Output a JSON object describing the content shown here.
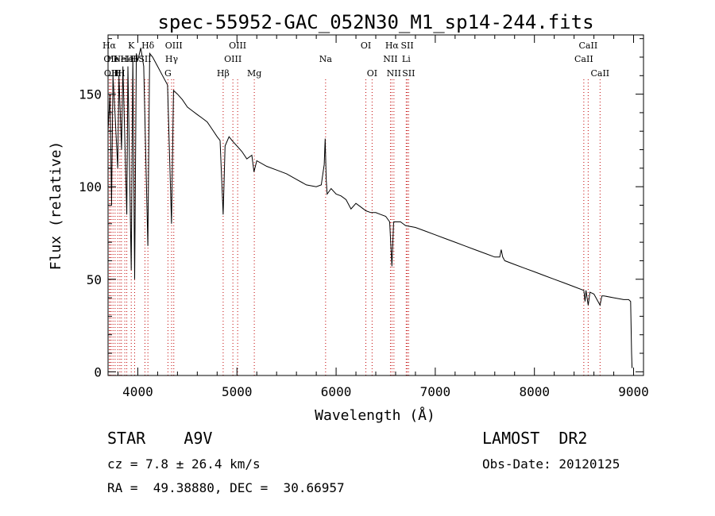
{
  "chart_data": {
    "type": "line",
    "title": "spec-55952-GAC_052N30_M1_sp14-244.fits",
    "xlabel": "Wavelength (Å)",
    "ylabel": "Flux (relative)",
    "xlim": [
      3700,
      9100
    ],
    "ylim": [
      -2,
      182
    ],
    "xticks": [
      4000,
      5000,
      6000,
      7000,
      8000,
      9000
    ],
    "yticks": [
      0,
      50,
      100,
      150
    ],
    "grid": false,
    "series": [
      {
        "points": [
          [
            3700,
            130
          ],
          [
            3720,
            150
          ],
          [
            3735,
            90
          ],
          [
            3750,
            160
          ],
          [
            3770,
            140
          ],
          [
            3798,
            110
          ],
          [
            3810,
            160
          ],
          [
            3836,
            120
          ],
          [
            3850,
            165
          ],
          [
            3889,
            85
          ],
          [
            3900,
            165
          ],
          [
            3934,
            55
          ],
          [
            3950,
            170
          ],
          [
            3968,
            50
          ],
          [
            3985,
            172
          ],
          [
            4000,
            168
          ],
          [
            4030,
            175
          ],
          [
            4060,
            165
          ],
          [
            4101,
            68
          ],
          [
            4120,
            172
          ],
          [
            4150,
            170
          ],
          [
            4200,
            165
          ],
          [
            4250,
            160
          ],
          [
            4300,
            155
          ],
          [
            4340,
            80
          ],
          [
            4360,
            152
          ],
          [
            4400,
            150
          ],
          [
            4450,
            147
          ],
          [
            4500,
            143
          ],
          [
            4550,
            141
          ],
          [
            4600,
            139
          ],
          [
            4650,
            137
          ],
          [
            4700,
            135
          ],
          [
            4750,
            131
          ],
          [
            4800,
            127
          ],
          [
            4830,
            125
          ],
          [
            4861,
            85
          ],
          [
            4880,
            122
          ],
          [
            4920,
            127
          ],
          [
            4950,
            125
          ],
          [
            5000,
            122
          ],
          [
            5050,
            119
          ],
          [
            5100,
            115
          ],
          [
            5150,
            117
          ],
          [
            5172,
            108
          ],
          [
            5200,
            114
          ],
          [
            5300,
            111
          ],
          [
            5400,
            109
          ],
          [
            5500,
            107
          ],
          [
            5600,
            104
          ],
          [
            5700,
            101
          ],
          [
            5800,
            100
          ],
          [
            5850,
            101
          ],
          [
            5880,
            112
          ],
          [
            5890,
            126
          ],
          [
            5900,
            104
          ],
          [
            5910,
            96
          ],
          [
            5950,
            99
          ],
          [
            6000,
            96
          ],
          [
            6050,
            95
          ],
          [
            6100,
            93
          ],
          [
            6150,
            88
          ],
          [
            6200,
            91
          ],
          [
            6250,
            89
          ],
          [
            6300,
            87
          ],
          [
            6350,
            86
          ],
          [
            6400,
            86
          ],
          [
            6450,
            85
          ],
          [
            6500,
            84
          ],
          [
            6540,
            81
          ],
          [
            6563,
            57
          ],
          [
            6580,
            81
          ],
          [
            6600,
            81
          ],
          [
            6650,
            81
          ],
          [
            6700,
            79
          ],
          [
            6800,
            78
          ],
          [
            6900,
            76
          ],
          [
            7000,
            74
          ],
          [
            7100,
            72
          ],
          [
            7200,
            70
          ],
          [
            7300,
            68
          ],
          [
            7400,
            66
          ],
          [
            7500,
            64
          ],
          [
            7600,
            62
          ],
          [
            7650,
            62
          ],
          [
            7665,
            66
          ],
          [
            7680,
            62
          ],
          [
            7700,
            60
          ],
          [
            7800,
            58
          ],
          [
            7900,
            56
          ],
          [
            8000,
            54
          ],
          [
            8100,
            52
          ],
          [
            8200,
            50
          ],
          [
            8300,
            48
          ],
          [
            8400,
            46
          ],
          [
            8498,
            44
          ],
          [
            8510,
            38
          ],
          [
            8520,
            44
          ],
          [
            8542,
            36
          ],
          [
            8560,
            43
          ],
          [
            8600,
            42
          ],
          [
            8662,
            36
          ],
          [
            8680,
            41
          ],
          [
            8700,
            41
          ],
          [
            8800,
            40
          ],
          [
            8900,
            39
          ],
          [
            8950,
            39
          ],
          [
            8970,
            38
          ],
          [
            8980,
            10
          ],
          [
            8985,
            2
          ]
        ]
      }
    ],
    "lines": [
      {
        "x": 3712,
        "label": "Hα",
        "row": 1
      },
      {
        "x": 3726,
        "label": "OII",
        "row": 2
      },
      {
        "x": 3730,
        "label": "OII",
        "row": 3
      },
      {
        "x": 3750,
        "label": "He",
        "row": 2
      },
      {
        "x": 3771,
        "label": "H",
        "row": 3
      },
      {
        "x": 3798,
        "label": "H",
        "row": 3
      },
      {
        "x": 3819,
        "label": "",
        "row": 0
      },
      {
        "x": 3835,
        "label": "H",
        "row": 3
      },
      {
        "x": 3869,
        "label": "NeIII",
        "row": 2
      },
      {
        "x": 3889,
        "label": "He",
        "row": 2
      },
      {
        "x": 3934,
        "label": "K",
        "row": 1
      },
      {
        "x": 3968,
        "label": "H",
        "row": 2
      },
      {
        "x": 4102,
        "label": "Hδ",
        "row": 1
      },
      {
        "x": 4072,
        "label": "SII",
        "row": 2
      },
      {
        "x": 4304,
        "label": "G",
        "row": 3
      },
      {
        "x": 4341,
        "label": "Hγ",
        "row": 2
      },
      {
        "x": 4363,
        "label": "OIII",
        "row": 1
      },
      {
        "x": 4861,
        "label": "Hβ",
        "row": 3
      },
      {
        "x": 4959,
        "label": "OIII",
        "row": 2
      },
      {
        "x": 5007,
        "label": "OIII",
        "row": 1
      },
      {
        "x": 5175,
        "label": "Mg",
        "row": 3
      },
      {
        "x": 5894,
        "label": "Na",
        "row": 2
      },
      {
        "x": 6300,
        "label": "OI",
        "row": 1
      },
      {
        "x": 6363,
        "label": "OI",
        "row": 3
      },
      {
        "x": 6548,
        "label": "NII",
        "row": 2
      },
      {
        "x": 6563,
        "label": "Hα",
        "row": 1
      },
      {
        "x": 6583,
        "label": "NII",
        "row": 3
      },
      {
        "x": 6707,
        "label": "Li",
        "row": 2
      },
      {
        "x": 6717,
        "label": "SII",
        "row": 1
      },
      {
        "x": 6731,
        "label": "SII",
        "row": 3
      },
      {
        "x": 8498,
        "label": "CaII",
        "row": 2
      },
      {
        "x": 8542,
        "label": "CaII",
        "row": 1
      },
      {
        "x": 8662,
        "label": "CaII",
        "row": 3
      }
    ]
  },
  "info": {
    "class": "STAR    A9V",
    "survey": "LAMOST  DR2",
    "cz": "cz = 7.8 ± 26.4 km/s",
    "obs_date": "Obs-Date: 20120125",
    "radec": "RA =  49.38880, DEC =  30.66957"
  }
}
